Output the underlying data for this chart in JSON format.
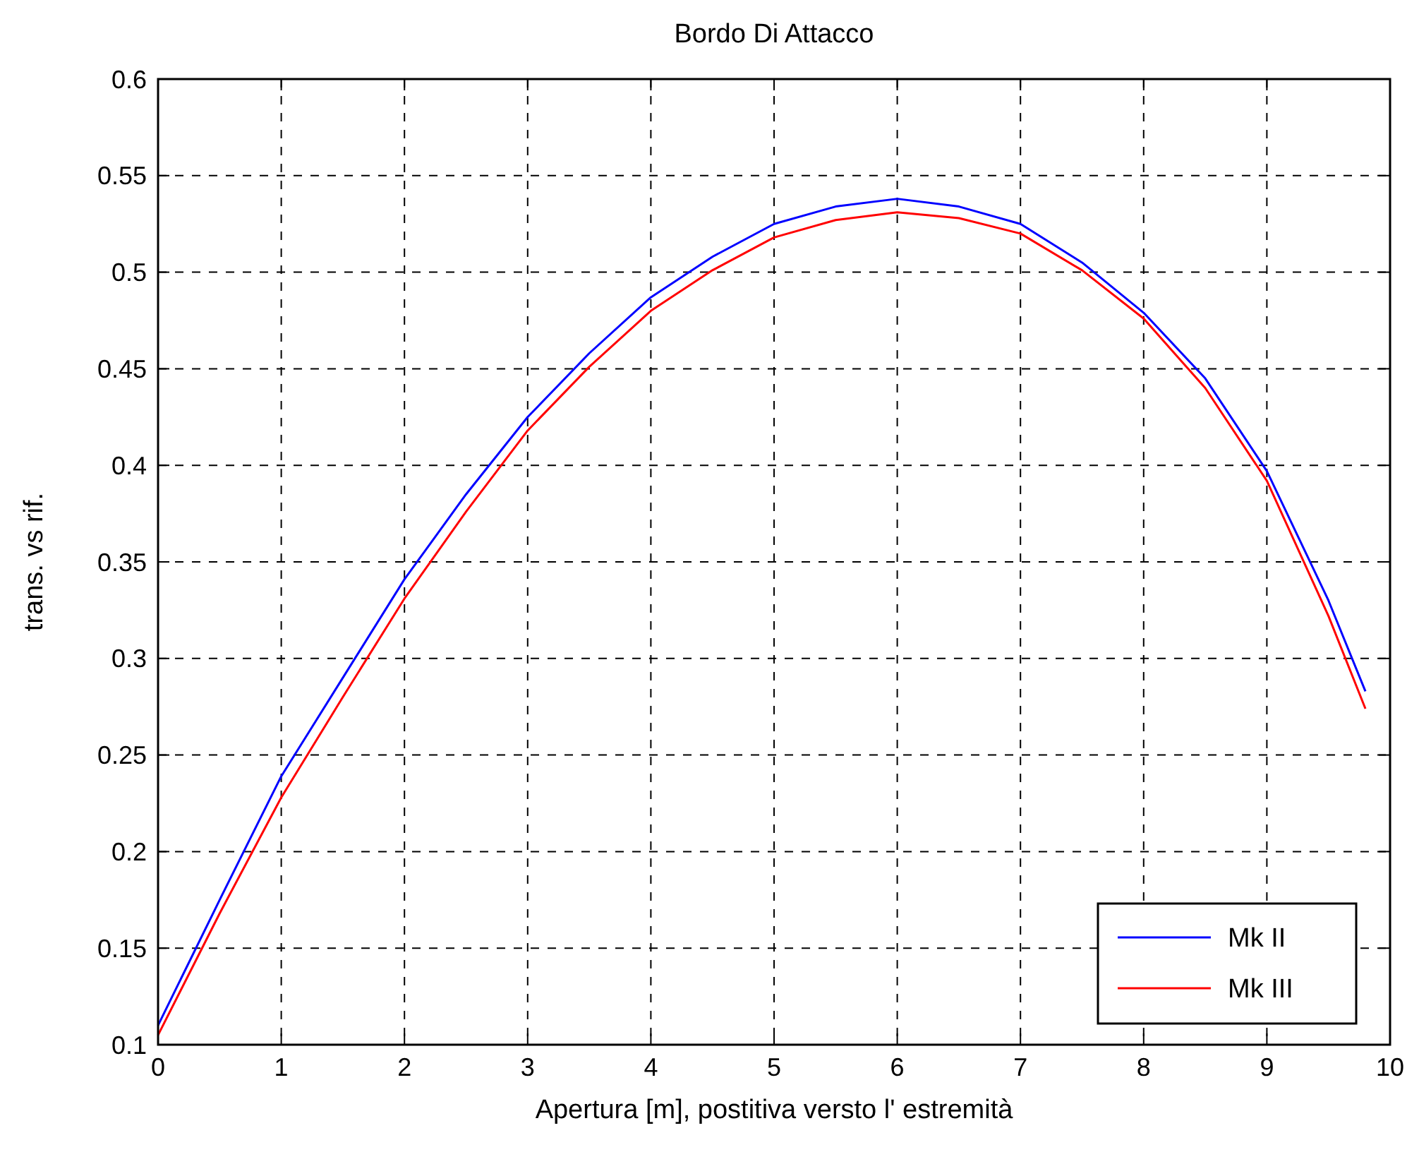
{
  "chart_data": {
    "type": "line",
    "title": "Bordo Di Attacco",
    "xlabel": "Apertura [m], postitiva versto l' estremità",
    "ylabel": "trans. vs rif.",
    "xlim": [
      0,
      10
    ],
    "xticks": [
      0,
      1,
      2,
      3,
      4,
      5,
      6,
      7,
      8,
      9,
      10
    ],
    "ylim": [
      0.1,
      0.6
    ],
    "yticks": [
      0.1,
      0.15,
      0.2,
      0.25,
      0.3,
      0.35,
      0.4,
      0.45,
      0.5,
      0.55,
      0.6
    ],
    "grid": true,
    "legend": "bottom right",
    "line_style": "solid",
    "series": [
      {
        "name": "Mk II",
        "color": "#0000ff",
        "x": [
          0,
          0.5,
          1,
          1.5,
          2,
          2.5,
          3,
          3.5,
          4,
          4.5,
          5,
          5.5,
          6,
          6.5,
          7,
          7.5,
          8,
          8.5,
          9,
          9.5,
          9.8
        ],
        "values": [
          0.11,
          0.175,
          0.239,
          0.29,
          0.341,
          0.385,
          0.425,
          0.458,
          0.487,
          0.508,
          0.525,
          0.534,
          0.538,
          0.534,
          0.525,
          0.505,
          0.479,
          0.445,
          0.397,
          0.33,
          0.283
        ]
      },
      {
        "name": "Mk III",
        "color": "#ff0000",
        "x": [
          0,
          0.5,
          1,
          1.5,
          2,
          2.5,
          3,
          3.5,
          4,
          4.5,
          5,
          5.5,
          6,
          6.5,
          7,
          7.5,
          8,
          8.5,
          9,
          9.5,
          9.8
        ],
        "values": [
          0.105,
          0.168,
          0.228,
          0.28,
          0.331,
          0.376,
          0.418,
          0.451,
          0.48,
          0.501,
          0.518,
          0.527,
          0.531,
          0.528,
          0.52,
          0.501,
          0.476,
          0.44,
          0.392,
          0.322,
          0.274
        ]
      }
    ]
  }
}
